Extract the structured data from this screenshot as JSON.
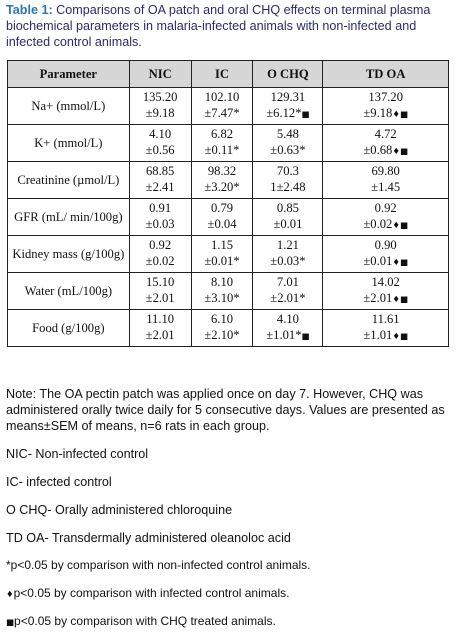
{
  "caption": {
    "label": "Table 1:",
    "text": " Comparisons of OA patch and oral CHQ effects on terminal plasma biochemical parameters in malaria-infected animals with non-infected and infected control animals."
  },
  "table": {
    "headers": [
      "Parameter",
      "NIC",
      "IC",
      "O CHQ",
      "TD OA"
    ],
    "rows": [
      {
        "param": "Na+ (mmol/L)",
        "cells": [
          {
            "v": "135.20",
            "s": "±9.18",
            "m": ""
          },
          {
            "v": "102.10",
            "s": "±7.47*",
            "m": ""
          },
          {
            "v": "129.31",
            "s": "±6.12*",
            "m": "■"
          },
          {
            "v": "137.20",
            "s": "±9.18",
            "m": "♦■"
          }
        ]
      },
      {
        "param": "K+ (mmol/L)",
        "cells": [
          {
            "v": "4.10",
            "s": "±0.56",
            "m": ""
          },
          {
            "v": "6.82",
            "s": "±0.11*",
            "m": ""
          },
          {
            "v": "5.48",
            "s": "±0.63*",
            "m": ""
          },
          {
            "v": "4.72",
            "s": "±0.68",
            "m": "♦■"
          }
        ]
      },
      {
        "param": "Creatinine (µmol/L)",
        "cells": [
          {
            "v": "68.85",
            "s": "±2.41",
            "m": ""
          },
          {
            "v": "98.32",
            "s": "±3.20*",
            "m": ""
          },
          {
            "v": "70.3",
            "s": "1±2.48",
            "m": ""
          },
          {
            "v": "69.80",
            "s": "±1.45",
            "m": ""
          }
        ]
      },
      {
        "param": "GFR (mL/ min/100g)",
        "cells": [
          {
            "v": "0.91",
            "s": "±0.03",
            "m": ""
          },
          {
            "v": "0.79",
            "s": "±0.04",
            "m": ""
          },
          {
            "v": "0.85",
            "s": "±0.01",
            "m": ""
          },
          {
            "v": "0.92",
            "s": "±0.02",
            "m": "♦■"
          }
        ]
      },
      {
        "param": "Kidney mass (g/100g)",
        "cells": [
          {
            "v": "0.92",
            "s": "±0.02",
            "m": ""
          },
          {
            "v": "1.15",
            "s": "±0.01*",
            "m": ""
          },
          {
            "v": "1.21",
            "s": "±0.03*",
            "m": ""
          },
          {
            "v": "0.90",
            "s": "±0.01",
            "m": "♦■"
          }
        ]
      },
      {
        "param": "Water (mL/100g)",
        "cells": [
          {
            "v": "15.10",
            "s": "±2.01",
            "m": ""
          },
          {
            "v": "8.10",
            "s": "±3.10*",
            "m": ""
          },
          {
            "v": "7.01",
            "s": "±2.01*",
            "m": ""
          },
          {
            "v": "14.02",
            "s": "±2.01",
            "m": "♦■"
          }
        ]
      },
      {
        "param": "Food (g/100g)",
        "cells": [
          {
            "v": "11.10",
            "s": "±2.01",
            "m": ""
          },
          {
            "v": "6.10",
            "s": "±2.10*",
            "m": ""
          },
          {
            "v": "4.10",
            "s": "±1.01*",
            "m": "■"
          },
          {
            "v": "11.61",
            "s": "±1.01",
            "m": "♦■"
          }
        ]
      }
    ]
  },
  "notes": {
    "main": "Note: The OA pectin patch was applied once on day 7. However, CHQ was administered orally twice daily for 5 consecutive days. Values are presented as means±SEM of means, n=6 rats in each group.",
    "abbreviations": [
      "NIC- Non-infected control",
      "IC- infected control",
      "O CHQ- Orally administered chloroquine",
      "TD OA- Transdermally administered oleanoloc acid"
    ],
    "footnotes": [
      {
        "mark": "",
        "text": "*p<0.05 by comparison with non-infected control animals."
      },
      {
        "mark": "♦",
        "text": "p<0.05 by comparison with infected control animals."
      },
      {
        "mark": "■",
        "text": "p<0.05 by comparison with CHQ treated animals."
      }
    ]
  }
}
